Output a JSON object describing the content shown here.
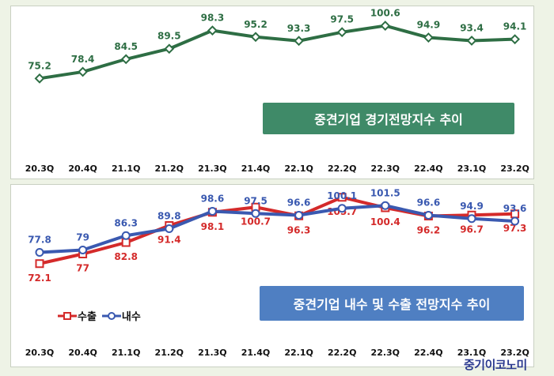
{
  "chart_data": [
    {
      "type": "line",
      "title": "중견기업 경기전망지수 추이",
      "categories": [
        "20.3Q",
        "20.4Q",
        "21.1Q",
        "21.2Q",
        "21.3Q",
        "21.4Q",
        "22.1Q",
        "22.2Q",
        "22.3Q",
        "22.4Q",
        "23.1Q",
        "23.2Q"
      ],
      "series": [
        {
          "values": [
            75.2,
            78.4,
            84.5,
            89.5,
            98.3,
            95.2,
            93.3,
            97.5,
            100.6,
            94.9,
            93.4,
            94.1
          ],
          "color": "#2e6e44",
          "marker": "diamond"
        }
      ],
      "ylim": [
        70,
        105
      ],
      "grid": false,
      "legend": "none"
    },
    {
      "type": "line",
      "title": "중견기업 내수 및 수출 전망지수 추이",
      "categories": [
        "20.3Q",
        "20.4Q",
        "21.1Q",
        "21.2Q",
        "21.3Q",
        "21.4Q",
        "22.1Q",
        "22.2Q",
        "22.3Q",
        "22.4Q",
        "23.1Q",
        "23.2Q"
      ],
      "series": [
        {
          "name": "수출",
          "values": [
            72.1,
            77,
            82.8,
            91.4,
            98.1,
            100.7,
            96.3,
            105.7,
            100.4,
            96.2,
            96.7,
            97.3
          ],
          "color": "#d42a2a",
          "marker": "square"
        },
        {
          "name": "내수",
          "values": [
            77.8,
            79,
            86.3,
            89.8,
            98.6,
            97.5,
            96.6,
            100.1,
            101.5,
            96.6,
            94.9,
            93.6
          ],
          "color": "#3a59b0",
          "marker": "circle"
        }
      ],
      "ylim": [
        68,
        110
      ],
      "grid": false,
      "legend": "bottom-left"
    }
  ],
  "branding": {
    "logo_text": "중기이코노미"
  }
}
